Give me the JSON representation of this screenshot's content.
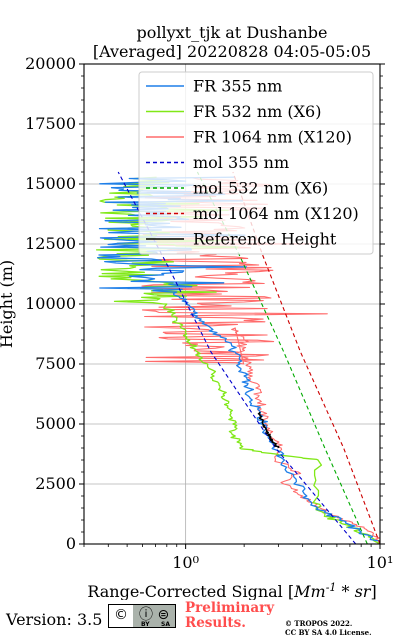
{
  "chart_data": {
    "type": "line",
    "title": "pollyxt_tjk at Dushanbe",
    "subtitle": "[Averaged] 20220828 04:05-05:05",
    "xlabel_prefix": "Range-Corrected Signal [",
    "xlabel_math": "Mm^-1 * sr^-1",
    "xlabel_suffix": "]",
    "ylabel": "Height (m)",
    "xscale": "log",
    "xlim": [
      0.3,
      10
    ],
    "ylim": [
      0,
      20000
    ],
    "yticks": [
      0,
      2500,
      5000,
      7500,
      10000,
      12500,
      15000,
      17500,
      20000
    ],
    "ytick_labels": [
      "0",
      "2500",
      "5000",
      "7500",
      "10000",
      "12500",
      "15000",
      "17500",
      "20000"
    ],
    "xticks": [
      1,
      10
    ],
    "xtick_labels": [
      "10⁰",
      "10¹"
    ],
    "grid": true,
    "legend_position": "top-right",
    "legend": [
      {
        "label": "FR 355 nm",
        "color": "#1f7fe8",
        "style": "solid"
      },
      {
        "label": "FR 532 nm (X6)",
        "color": "#80e817",
        "style": "solid"
      },
      {
        "label": "FR 1064 nm (X120)",
        "color": "#ff6b6b",
        "style": "solid"
      },
      {
        "label": "mol 355 nm",
        "color": "#0000cc",
        "style": "dashed"
      },
      {
        "label": "mol 532 nm (X6)",
        "color": "#00aa00",
        "style": "dashed"
      },
      {
        "label": "mol 1064 nm (X120)",
        "color": "#cc0000",
        "style": "dashed"
      },
      {
        "label": "Reference Height",
        "color": "#000000",
        "style": "solid"
      }
    ],
    "series": [
      {
        "name": "FR 1064 nm (X120)",
        "color": "#ff6b6b",
        "style": "solid",
        "width": 1.1,
        "x": [
          10.5,
          9.2,
          7.6,
          5.6,
          4.6,
          4.0,
          3.2,
          3.8,
          2.9,
          3.1,
          2.7,
          2.6,
          2.5,
          2.4,
          2.3,
          2.2,
          2.1,
          1.9,
          2.0,
          1.8
        ],
        "y": [
          0,
          400,
          800,
          1200,
          1600,
          2000,
          2500,
          3000,
          3500,
          4000,
          4500,
          5000,
          5500,
          6000,
          6500,
          7000,
          7500,
          8000,
          8500,
          9000
        ],
        "noisy_from": 7500,
        "noisy_to": 15300,
        "noisy_center": 1.3,
        "noisy_spread": 2.2
      },
      {
        "name": "FR 532 nm (X6)",
        "color": "#80e817",
        "style": "solid",
        "width": 1.3,
        "x": [
          10.5,
          8.6,
          6.7,
          5.2,
          4.6,
          4.8,
          3.0,
          1.9,
          1.8,
          1.75,
          1.7,
          1.6,
          1.5,
          1.4,
          1.3,
          1.15,
          1.05,
          0.95,
          0.85,
          0.8
        ],
        "y": [
          0,
          400,
          800,
          1200,
          1800,
          3500,
          3700,
          4000,
          4500,
          5000,
          5500,
          6000,
          6500,
          7000,
          7500,
          8000,
          8500,
          9000,
          9500,
          10000
        ],
        "noisy_from": 10000,
        "noisy_to": 15300,
        "noisy_center": 0.55,
        "noisy_spread": 1.6
      },
      {
        "name": "FR 355 nm",
        "color": "#1f7fe8",
        "style": "solid",
        "width": 1.3,
        "x": [
          10.5,
          8.0,
          6.2,
          4.8,
          4.2,
          3.6,
          3.1,
          2.8,
          2.6,
          2.4,
          2.2,
          2.1,
          2.0,
          1.9,
          1.8,
          1.6,
          1.35,
          1.15,
          1.0,
          0.9
        ],
        "y": [
          0,
          500,
          1000,
          1500,
          2000,
          2800,
          3600,
          4200,
          4800,
          5400,
          6000,
          6500,
          7000,
          7500,
          8000,
          8500,
          9000,
          9500,
          10000,
          10500
        ],
        "noisy_from": 10500,
        "noisy_to": 15300,
        "noisy_center": 0.62,
        "noisy_spread": 1.8
      },
      {
        "name": "mol 355 nm",
        "color": "#0000cc",
        "style": "dashed",
        "width": 1.1,
        "x": [
          7.5,
          2.9,
          1.35,
          0.82,
          0.45
        ],
        "y": [
          0,
          4000,
          8000,
          11500,
          15500
        ]
      },
      {
        "name": "mol 532 nm (X6)",
        "color": "#00aa00",
        "style": "dashed",
        "width": 1.1,
        "x": [
          8.6,
          5.2,
          3.2,
          1.9,
          1.15
        ],
        "y": [
          0,
          4000,
          8000,
          12000,
          15500
        ]
      },
      {
        "name": "mol 1064 nm (X120)",
        "color": "#cc0000",
        "style": "dashed",
        "width": 1.1,
        "x": [
          10,
          6.5,
          3.9,
          2.5,
          1.75
        ],
        "y": [
          0,
          4000,
          8000,
          12000,
          15500
        ]
      },
      {
        "name": "Reference Height",
        "color": "#000000",
        "style": "solid",
        "width": 1.4,
        "x": [
          2.4,
          2.45,
          2.5,
          2.6,
          2.7,
          2.8,
          2.9,
          3.0
        ],
        "y": [
          5500,
          5200,
          4950,
          4700,
          4500,
          4300,
          4150,
          4000
        ]
      }
    ]
  },
  "footer": {
    "version": "Version: 3.5",
    "license_badge": {
      "left_glyph": "©",
      "right_glyphs": "ⓘ ⊜",
      "by": "BY",
      "sa": "SA"
    },
    "preliminary_line1": "Preliminary",
    "preliminary_line2": "Results.",
    "copyright_line1": "© TROPOS 2022.",
    "copyright_line2": "CC BY SA 4.0 License."
  }
}
